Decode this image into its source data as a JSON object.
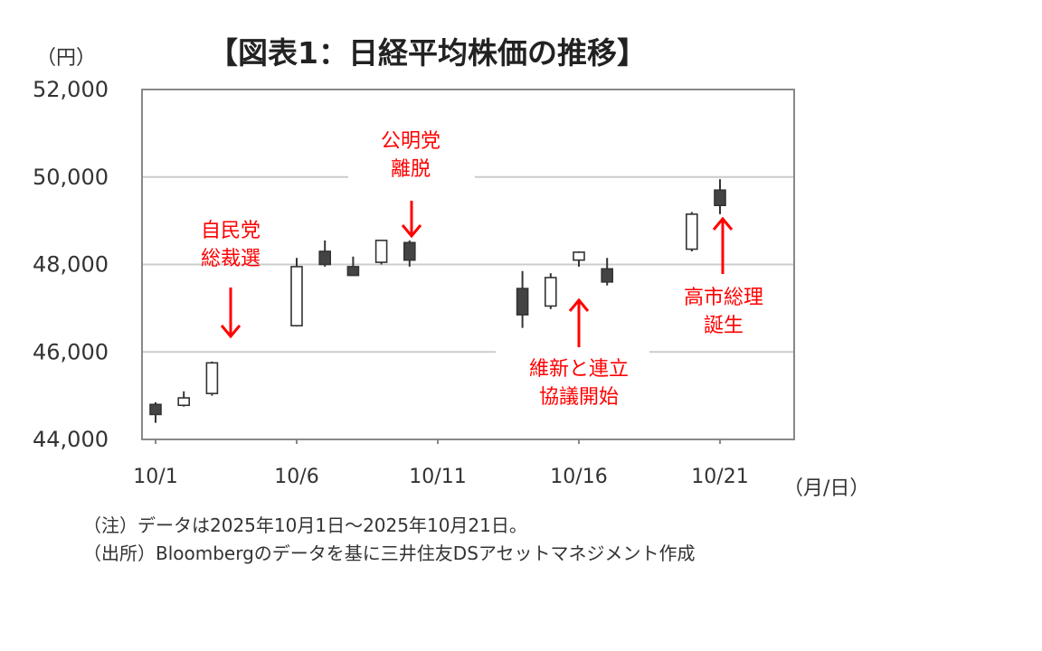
{
  "title": "【図表1：日経平均株価の推移】",
  "y_unit": "（円）",
  "x_unit": "（月/日）",
  "annotations": [
    {
      "id": "ldp",
      "lines": [
        "自民党",
        "総裁選"
      ],
      "arrow": "down"
    },
    {
      "id": "komeito",
      "lines": [
        "公明党",
        "離脱"
      ],
      "arrow": "down"
    },
    {
      "id": "ishin",
      "lines": [
        "維新と連立",
        "協議開始"
      ],
      "arrow": "up"
    },
    {
      "id": "takaichi",
      "lines": [
        "高市総理",
        "誕生"
      ],
      "arrow": "up"
    }
  ],
  "notes": [
    "（注）データは2025年10月1日～2025年10月21日。",
    "（出所）Bloombergのデータを基に三井住友DSアセットマネジメント作成"
  ],
  "colors": {
    "up": "#ffffff",
    "down": "#444444",
    "frame": "#888888",
    "grid": "#cccccc",
    "annotation": "#ff0000"
  },
  "chart_data": {
    "type": "candlestick",
    "ylim": [
      44000,
      52000
    ],
    "yticks": [
      44000,
      46000,
      48000,
      50000,
      52000
    ],
    "ytick_labels": [
      "44,000",
      "46,000",
      "48,000",
      "50,000",
      "52,000"
    ],
    "xticks": [
      "10/1",
      "10/6",
      "10/11",
      "10/16",
      "10/21"
    ],
    "grid": true,
    "candles": [
      {
        "date": "10/1",
        "open": 44800,
        "high": 44850,
        "low": 44380,
        "close": 44570
      },
      {
        "date": "10/2",
        "open": 44780,
        "high": 45100,
        "low": 44750,
        "close": 44950
      },
      {
        "date": "10/3",
        "open": 45050,
        "high": 45780,
        "low": 45000,
        "close": 45750
      },
      {
        "date": "10/6",
        "open": 46600,
        "high": 48150,
        "low": 46580,
        "close": 47950
      },
      {
        "date": "10/7",
        "open": 48300,
        "high": 48550,
        "low": 47950,
        "close": 48000
      },
      {
        "date": "10/8",
        "open": 47950,
        "high": 48180,
        "low": 47750,
        "close": 47750
      },
      {
        "date": "10/9",
        "open": 48050,
        "high": 48550,
        "low": 48000,
        "close": 48550
      },
      {
        "date": "10/10",
        "open": 48500,
        "high": 48550,
        "low": 47950,
        "close": 48100
      },
      {
        "date": "10/14",
        "open": 47450,
        "high": 47850,
        "low": 46550,
        "close": 46850
      },
      {
        "date": "10/15",
        "open": 47050,
        "high": 47800,
        "low": 46980,
        "close": 47700
      },
      {
        "date": "10/16",
        "open": 48100,
        "high": 48300,
        "low": 47950,
        "close": 48280
      },
      {
        "date": "10/17",
        "open": 47900,
        "high": 48150,
        "low": 47520,
        "close": 47600
      },
      {
        "date": "10/20",
        "open": 48350,
        "high": 49200,
        "low": 48300,
        "close": 49150
      },
      {
        "date": "10/21",
        "open": 49700,
        "high": 49950,
        "low": 49150,
        "close": 49350
      }
    ]
  }
}
